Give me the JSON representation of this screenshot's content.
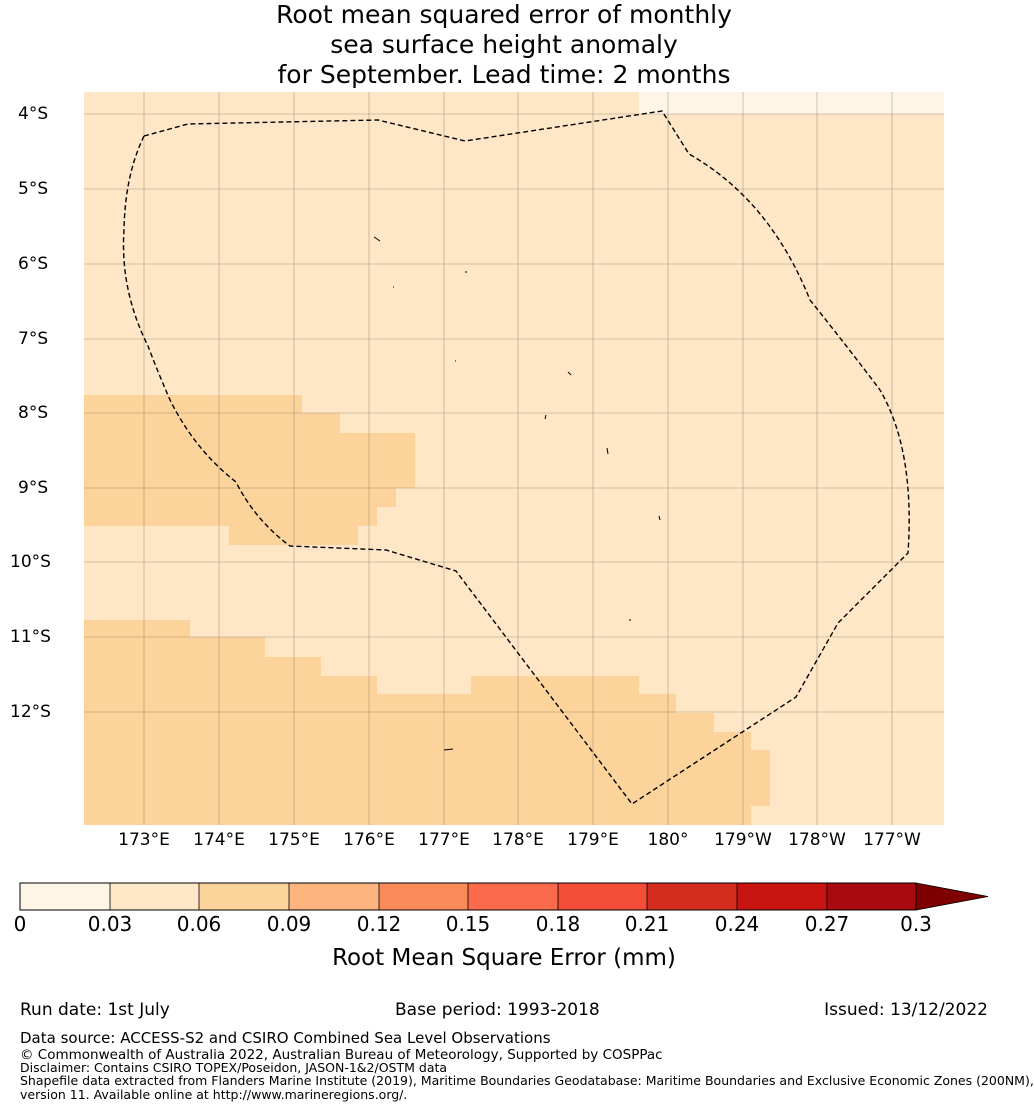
{
  "title": {
    "line1": "Root mean squared error of monthly",
    "line2": "sea surface height anomaly",
    "line3": "for September. Lead time: 2 months"
  },
  "map": {
    "lat_labels": [
      "4°S",
      "5°S",
      "6°S",
      "7°S",
      "8°S",
      "9°S",
      "10°S",
      "11°S",
      "12°S"
    ],
    "lon_labels": [
      "173°E",
      "174°E",
      "175°E",
      "176°E",
      "177°E",
      "178°E",
      "179°E",
      "180°",
      "179°W",
      "178°W",
      "177°W"
    ],
    "grid": true,
    "boundary": "dashed maritime boundary (EEZ)",
    "fill_colors": {
      "bin_0_003": "#fff5e7",
      "bin_003_006": "#fee6c6",
      "bin_006_009": "#fdd39c"
    }
  },
  "colorbar": {
    "ticks": [
      "0",
      "0.03",
      "0.06",
      "0.09",
      "0.12",
      "0.15",
      "0.18",
      "0.21",
      "0.24",
      "0.27",
      "0.3"
    ],
    "colors": [
      "#fff5e7",
      "#fee6c6",
      "#fdd39c",
      "#fdb47f",
      "#fc8b5a",
      "#fb6a4a",
      "#f44d38",
      "#d42d20",
      "#c81411",
      "#a90a0f"
    ],
    "extend_color": "#7f0000",
    "label": "Root Mean Square Error (mm)"
  },
  "footer": {
    "run_date": "Run date: 1st July",
    "base_period": "Base period: 1993-2018",
    "issued": "Issued: 13/12/2022",
    "data_source": "Data source: ACCESS-S2 and CSIRO Combined Sea Level Observations",
    "copyright": "© Commonwealth of Australia 2022, Australian Bureau of Meteorology, Supported by COSPPac",
    "disclaimer": "Disclaimer: Contains CSIRO TOPEX/Poseidon, JASON-1&2/OSTM data",
    "shapefile1": "Shapefile data extracted from Flanders Marine Institute (2019), Maritime Boundaries Geodatabase: Maritime Boundaries and Exclusive Economic Zones (200NM),",
    "shapefile2": "version 11. Available online at http://www.marineregions.org/."
  }
}
